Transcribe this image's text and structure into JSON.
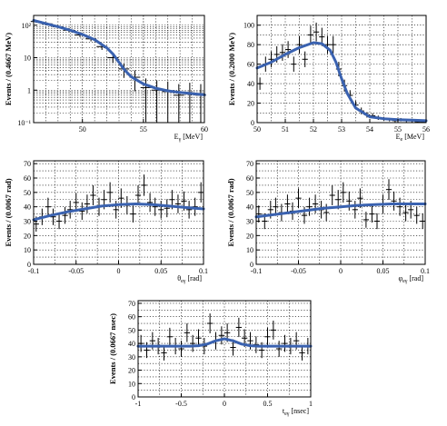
{
  "figure": {
    "colors": {
      "fit": "#3a62b0",
      "data": "#000000",
      "grid": "#000000",
      "frame": "#000000"
    }
  },
  "chart_data": [
    {
      "id": "p1",
      "type": "scatter",
      "ylog": true,
      "xlabel": "E",
      "xlabel_sub": "γ",
      "xlabel_unit": "[MeV]",
      "ylabel": "Events / (0.4667 MeV)",
      "xlim": [
        46,
        60
      ],
      "ylim": [
        0.1,
        200
      ],
      "xticks": [
        "50",
        "55",
        "60"
      ],
      "yticks": [
        "10⁻¹",
        "1",
        "10",
        "10²"
      ],
      "x": [
        46.2,
        47.1,
        48.0,
        48.9,
        49.8,
        50.7,
        51.6,
        52.5,
        53.4,
        54.3,
        55.2,
        56.1,
        57.0,
        57.9,
        58.8,
        59.7
      ],
      "y": [
        130,
        110,
        90,
        70,
        50,
        38,
        22,
        10,
        4.5,
        2.5,
        1.2,
        1.0,
        0.9,
        0.7,
        0.8,
        0.7
      ],
      "fit": {
        "x": [
          46,
          47,
          48,
          49,
          50,
          51,
          52,
          52.5,
          53,
          53.5,
          54,
          55,
          56,
          57,
          58,
          59,
          60
        ],
        "y": [
          140,
          112,
          90,
          70,
          52,
          36,
          20,
          13,
          7.2,
          4.0,
          2.6,
          1.55,
          1.15,
          0.95,
          0.85,
          0.78,
          0.72
        ]
      }
    },
    {
      "id": "p2",
      "type": "scatter",
      "xlabel": "E",
      "xlabel_sub": "e",
      "xlabel_unit": "[MeV]",
      "ylabel": "Events / (0.2000 MeV)",
      "xlim": [
        50,
        56
      ],
      "ylim": [
        0,
        110
      ],
      "xticks": [
        "50",
        "51",
        "52",
        "53",
        "54",
        "55",
        "56"
      ],
      "yticks": [
        "0",
        "20",
        "40",
        "60",
        "80",
        "100"
      ],
      "x": [
        50.1,
        50.3,
        50.5,
        50.7,
        50.9,
        51.1,
        51.3,
        51.5,
        51.7,
        51.9,
        52.1,
        52.3,
        52.5,
        52.7,
        52.9,
        53.1,
        53.3,
        53.5,
        53.7,
        53.9,
        54.1,
        54.3,
        54.5,
        54.7,
        54.9,
        55.1,
        55.3,
        55.5,
        55.7,
        55.9
      ],
      "y": [
        40,
        60,
        65,
        70,
        72,
        75,
        60,
        80,
        65,
        90,
        93,
        88,
        80,
        80,
        55,
        38,
        28,
        18,
        12,
        8,
        7,
        5,
        4,
        3,
        2,
        3,
        2,
        2,
        1,
        1
      ],
      "fit": {
        "x": [
          50,
          50.5,
          51,
          51.5,
          52,
          52.3,
          52.6,
          52.8,
          53,
          53.2,
          53.5,
          54,
          54.5,
          55,
          55.5,
          56
        ],
        "y": [
          56,
          62,
          70,
          77,
          82,
          81,
          74,
          62,
          45,
          30,
          15,
          6,
          4,
          3,
          2.5,
          2
        ]
      }
    },
    {
      "id": "p3",
      "type": "scatter",
      "xlabel": "θ",
      "xlabel_sub": "eγ",
      "xlabel_unit": "[rad]",
      "ylabel": "Events / (0.0067 rad)",
      "xlim": [
        -0.1,
        0.1
      ],
      "ylim": [
        0,
        72
      ],
      "xticks": [
        "-0.1",
        "-0.05",
        "0",
        "0.05",
        "0.1"
      ],
      "yticks": [
        "0",
        "10",
        "20",
        "30",
        "40",
        "50",
        "60",
        "70"
      ],
      "x": [
        -0.097,
        -0.09,
        -0.083,
        -0.077,
        -0.07,
        -0.063,
        -0.057,
        -0.05,
        -0.043,
        -0.037,
        -0.03,
        -0.023,
        -0.017,
        -0.01,
        -0.003,
        0.003,
        0.01,
        0.017,
        0.023,
        0.03,
        0.037,
        0.043,
        0.05,
        0.057,
        0.063,
        0.07,
        0.077,
        0.083,
        0.09,
        0.097
      ],
      "y": [
        28,
        33,
        40,
        33,
        30,
        34,
        38,
        43,
        37,
        42,
        48,
        40,
        45,
        50,
        38,
        46,
        41,
        35,
        48,
        55,
        43,
        40,
        38,
        39,
        45,
        42,
        44,
        38,
        40,
        50
      ],
      "fit": {
        "x": [
          -0.1,
          -0.08,
          -0.06,
          -0.04,
          -0.02,
          0,
          0.02,
          0.04,
          0.06,
          0.08,
          0.1
        ],
        "y": [
          31,
          34,
          36.5,
          38.5,
          40.5,
          41.5,
          42,
          41.5,
          40.5,
          39.5,
          38.5
        ]
      }
    },
    {
      "id": "p4",
      "type": "scatter",
      "xlabel": "φ",
      "xlabel_sub": "eγ",
      "xlabel_unit": "[rad]",
      "ylabel": "Events / (0.0067 rad)",
      "xlim": [
        -0.1,
        0.1
      ],
      "ylim": [
        0,
        72
      ],
      "xticks": [
        "-0.1",
        "-0.05",
        "0",
        "0.05",
        "0.1"
      ],
      "yticks": [
        "0",
        "10",
        "20",
        "30",
        "40",
        "50",
        "60",
        "70"
      ],
      "x": [
        -0.097,
        -0.09,
        -0.083,
        -0.077,
        -0.07,
        -0.063,
        -0.057,
        -0.05,
        -0.043,
        -0.037,
        -0.03,
        -0.023,
        -0.017,
        -0.01,
        -0.003,
        0.003,
        0.01,
        0.017,
        0.023,
        0.03,
        0.037,
        0.043,
        0.05,
        0.057,
        0.063,
        0.07,
        0.077,
        0.083,
        0.09,
        0.097
      ],
      "y": [
        35,
        30,
        38,
        40,
        36,
        42,
        37,
        46,
        34,
        40,
        42,
        38,
        36,
        48,
        45,
        50,
        44,
        38,
        46,
        31,
        35,
        30,
        42,
        52,
        44,
        40,
        36,
        38,
        34,
        30
      ],
      "fit": {
        "x": [
          -0.1,
          -0.08,
          -0.06,
          -0.04,
          -0.02,
          0,
          0.02,
          0.04,
          0.06,
          0.08,
          0.1
        ],
        "y": [
          33,
          34.5,
          36,
          37.5,
          39,
          40,
          41,
          41.5,
          42,
          42,
          42
        ]
      }
    },
    {
      "id": "p5",
      "type": "scatter",
      "xlabel": "t",
      "xlabel_sub": "eγ",
      "xlabel_unit": "[nsec]",
      "ylabel": "Events / (0.0667 nsec)",
      "xlim": [
        -1,
        1
      ],
      "ylim": [
        0,
        72
      ],
      "xticks": [
        "-1",
        "-0.5",
        "0",
        "0.5",
        "1"
      ],
      "yticks": [
        "0",
        "10",
        "20",
        "30",
        "40",
        "50",
        "60",
        "70"
      ],
      "x": [
        -0.967,
        -0.9,
        -0.833,
        -0.767,
        -0.7,
        -0.633,
        -0.567,
        -0.5,
        -0.433,
        -0.367,
        -0.3,
        -0.233,
        -0.167,
        -0.1,
        -0.033,
        0.033,
        0.1,
        0.167,
        0.233,
        0.3,
        0.367,
        0.433,
        0.5,
        0.567,
        0.633,
        0.7,
        0.767,
        0.833,
        0.9,
        0.967
      ],
      "y": [
        40,
        35,
        42,
        38,
        33,
        45,
        38,
        36,
        48,
        40,
        44,
        38,
        55,
        42,
        46,
        48,
        37,
        52,
        44,
        42,
        39,
        35,
        45,
        50,
        36,
        40,
        38,
        42,
        33,
        38
      ],
      "fit": {
        "x": [
          -1,
          -0.8,
          -0.6,
          -0.4,
          -0.3,
          -0.2,
          -0.1,
          0,
          0.1,
          0.2,
          0.3,
          0.4,
          0.6,
          0.8,
          1
        ],
        "y": [
          38,
          38,
          38,
          38,
          38.3,
          39.5,
          42,
          43.5,
          42,
          39.5,
          38.3,
          38,
          38,
          38,
          38
        ]
      }
    }
  ]
}
